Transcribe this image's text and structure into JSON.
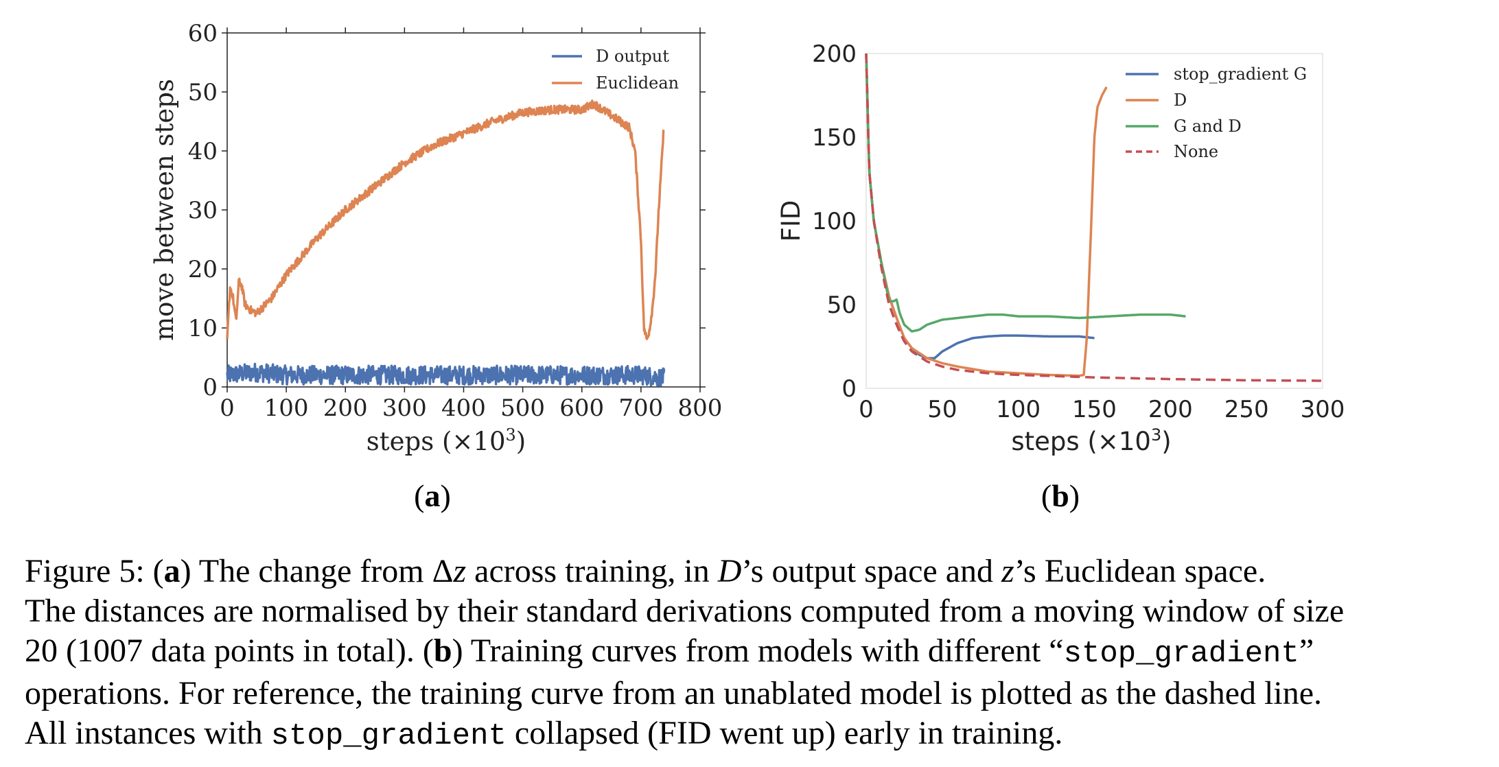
{
  "panel_a": {
    "label": "a",
    "ylabel": "move between steps",
    "xlabel_text": "steps (×10",
    "xlabel_exp": "3",
    "xlabel_close": ")",
    "legend": [
      "D output",
      "Euclidean"
    ]
  },
  "panel_b": {
    "label": "b",
    "ylabel": "FID",
    "xlabel_text": "steps (×10",
    "xlabel_exp": "3",
    "xlabel_close": ")",
    "legend": [
      "stop_gradient G",
      "D",
      "G and D",
      "None"
    ]
  },
  "colors": {
    "blue": "#4c72b0",
    "orange": "#dd8452",
    "green": "#55a868",
    "red": "#c44e52"
  },
  "chart_data": [
    {
      "type": "line",
      "xlabel": "steps (×10^3)",
      "ylabel": "move between steps",
      "xlim": [
        0,
        800
      ],
      "ylim": [
        0,
        60
      ],
      "xticks": [
        0,
        100,
        200,
        300,
        400,
        500,
        600,
        700,
        800
      ],
      "yticks": [
        0,
        10,
        20,
        30,
        40,
        50,
        60
      ],
      "legend_position": "top-right",
      "grid": false,
      "series": [
        {
          "name": "D output",
          "color": "#4c72b0",
          "x": [
            0,
            50,
            100,
            200,
            300,
            400,
            500,
            600,
            700,
            740
          ],
          "y": [
            2,
            2.5,
            2,
            2,
            2,
            2,
            2,
            2,
            2,
            1.5
          ],
          "noise": 1.6
        },
        {
          "name": "Euclidean",
          "color": "#dd8452",
          "x": [
            0,
            5,
            10,
            15,
            20,
            25,
            30,
            40,
            50,
            75,
            100,
            150,
            200,
            250,
            300,
            350,
            400,
            450,
            500,
            550,
            600,
            620,
            650,
            680,
            690,
            700,
            705,
            710,
            715,
            720,
            725,
            730,
            735,
            738
          ],
          "y": [
            8,
            17,
            15,
            11,
            18,
            17,
            14,
            13,
            12.5,
            15,
            19,
            25,
            30,
            34,
            38,
            41,
            43,
            45,
            46.5,
            47,
            47,
            48,
            46,
            44,
            40,
            25,
            10,
            8,
            10,
            14,
            20,
            30,
            38,
            43
          ],
          "noise": 0.7
        }
      ]
    },
    {
      "type": "line",
      "xlabel": "steps (×10^3)",
      "ylabel": "FID",
      "xlim": [
        0,
        300
      ],
      "ylim": [
        0,
        200
      ],
      "xticks": [
        0,
        50,
        100,
        150,
        200,
        250,
        300
      ],
      "yticks": [
        0,
        50,
        100,
        150,
        200
      ],
      "legend_position": "top-right",
      "grid": false,
      "series": [
        {
          "name": "stop_gradient G",
          "color": "#4c72b0",
          "x": [
            0,
            2,
            5,
            10,
            15,
            20,
            25,
            30,
            35,
            40,
            45,
            50,
            60,
            70,
            80,
            90,
            100,
            120,
            140,
            150
          ],
          "y": [
            200,
            130,
            100,
            75,
            55,
            42,
            30,
            24,
            20,
            18,
            18,
            22,
            27,
            30,
            31,
            31.5,
            31.5,
            31,
            31,
            30
          ]
        },
        {
          "name": "D",
          "color": "#dd8452",
          "x": [
            0,
            2,
            5,
            10,
            15,
            20,
            25,
            30,
            40,
            50,
            60,
            80,
            100,
            120,
            140,
            143,
            145,
            148,
            150,
            152,
            155,
            158
          ],
          "y": [
            200,
            130,
            100,
            75,
            55,
            42,
            30,
            24,
            18,
            15,
            13,
            10,
            9,
            8,
            7.5,
            8,
            30,
            100,
            150,
            168,
            175,
            180
          ]
        },
        {
          "name": "G and D",
          "color": "#55a868",
          "x": [
            0,
            2,
            5,
            10,
            15,
            18,
            20,
            22,
            25,
            30,
            35,
            40,
            50,
            60,
            70,
            80,
            90,
            100,
            120,
            140,
            160,
            180,
            200,
            210
          ],
          "y": [
            200,
            130,
            100,
            75,
            52,
            52,
            53,
            45,
            38,
            34,
            35,
            38,
            41,
            42,
            43,
            44,
            44,
            43,
            43,
            42,
            43,
            44,
            44,
            43
          ]
        },
        {
          "name": "None",
          "color": "#c44e52",
          "dashed": true,
          "x": [
            0,
            2,
            5,
            10,
            15,
            20,
            25,
            30,
            40,
            50,
            60,
            80,
            100,
            150,
            200,
            250,
            300
          ],
          "y": [
            200,
            130,
            100,
            72,
            50,
            38,
            28,
            22,
            16,
            13,
            11,
            9,
            8,
            6.5,
            5.5,
            4.8,
            4.5
          ]
        }
      ]
    }
  ],
  "caption": {
    "line1_prefix": "Figure 5:  (",
    "line1_a": "a",
    "line1_mid": ") The change from Δ",
    "line1_z": "z",
    "line1_rest1": " across training, in ",
    "line1_D": "D",
    "line1_rest2": "’s output space and ",
    "line1_z2": "z",
    "line1_rest3": "’s Euclidean space.",
    "line2": "The distances are normalised by their standard derivations computed from a moving window of size",
    "line3_prefix": "20 (1007 data points in total). (",
    "line3_b": "b",
    "line3_mid": ") Training curves from models with different “",
    "line3_mono": "stop_gradient",
    "line3_end": "”",
    "line4": "operations. For reference, the training curve from an unablated model is plotted as the dashed line.",
    "line5_prefix": "All instances with ",
    "line5_mono": "stop_gradient",
    "line5_end": " collapsed (FID went up) early in training."
  }
}
